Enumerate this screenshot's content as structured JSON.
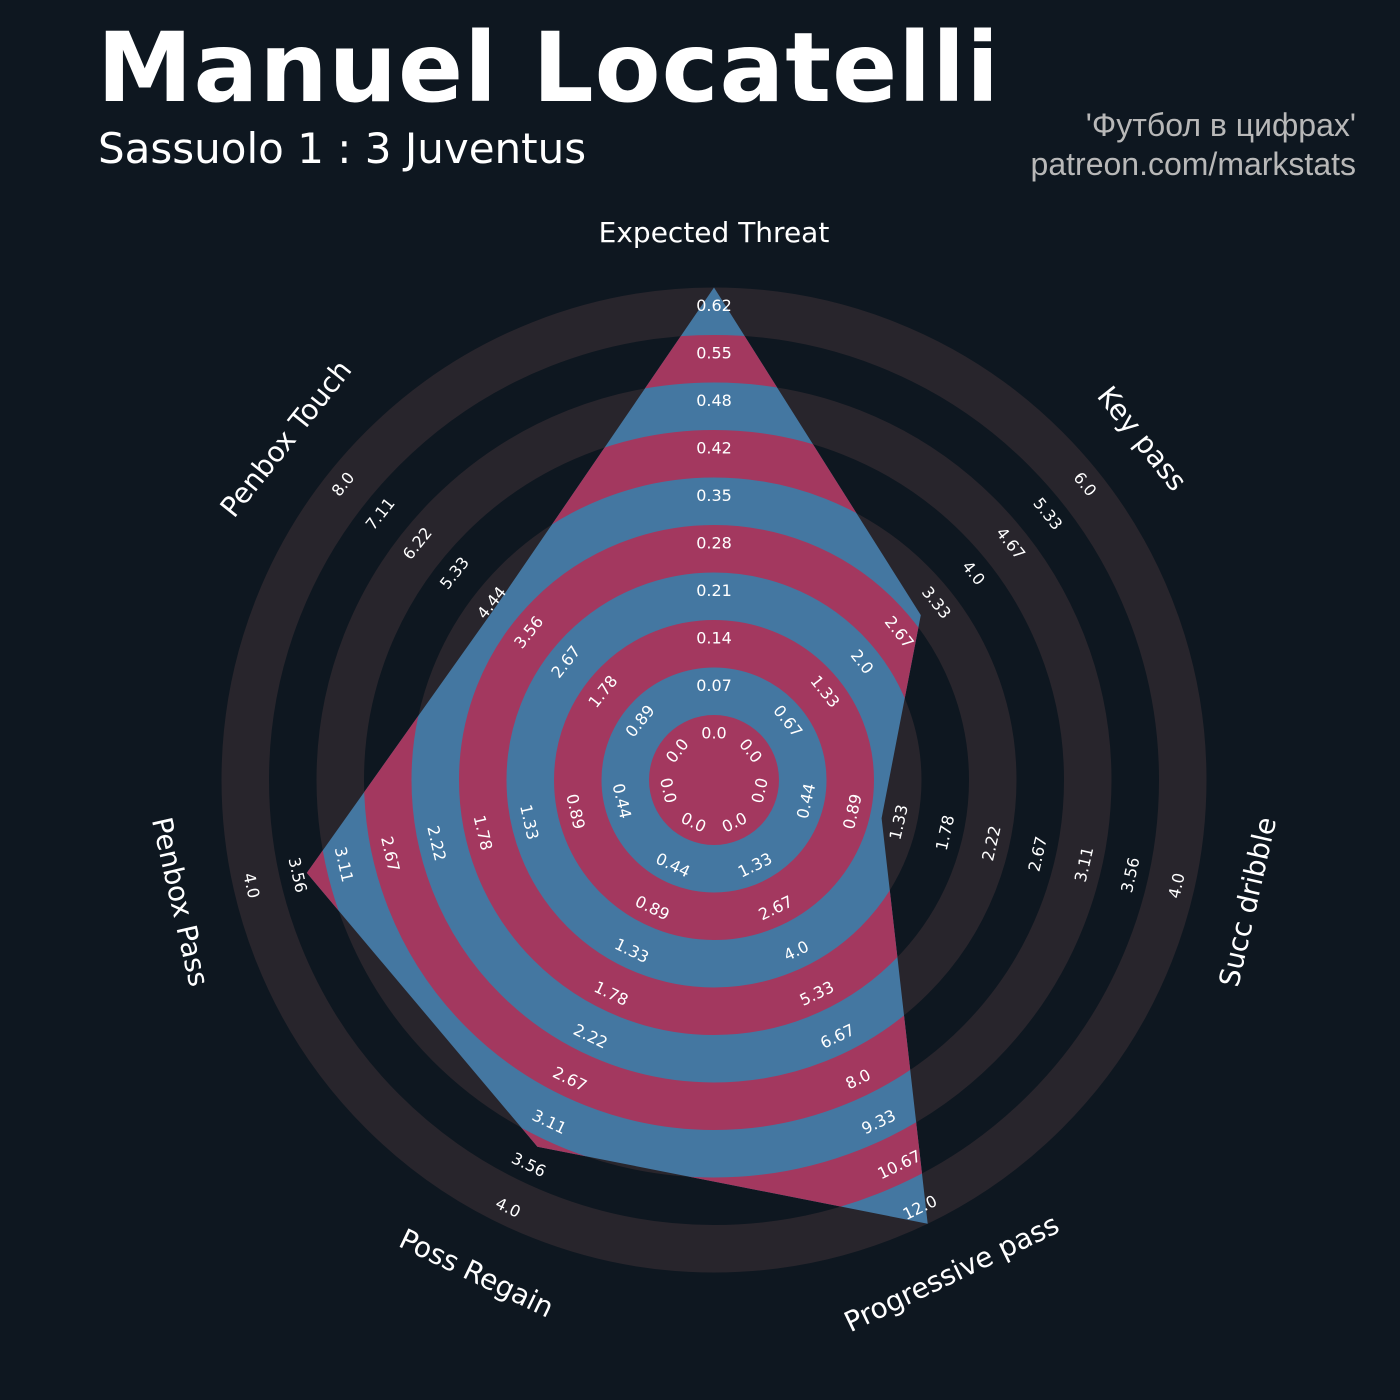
{
  "header": {
    "player_name": "Manuel Locatelli",
    "match": "Sassuolo 1 : 3 Juventus",
    "credit_line1": "'Футбол в цифрах'",
    "credit_line2": "patreon.com/markstats"
  },
  "colors": {
    "background": "#0e1720",
    "ring_band": "#28252c",
    "player_fill": "#4477a1",
    "player_alt": "#a3385f",
    "label_text": "#ffffff"
  },
  "chart_data": {
    "type": "radar",
    "title": "Manuel Locatelli",
    "subtitle": "Sassuolo 1 : 3 Juventus",
    "params": [
      "Expected Threat",
      "Key pass",
      "Succ dribble",
      "Progressive pass",
      "Poss Regain",
      "Penbox Pass",
      "Penbox Touch"
    ],
    "ranges": [
      [
        0.0,
        0.62
      ],
      [
        0.0,
        6.0
      ],
      [
        0.0,
        4.0
      ],
      [
        0.0,
        12.0
      ],
      [
        0.0,
        4.0
      ],
      [
        0.0,
        4.0
      ],
      [
        0.0,
        8.0
      ]
    ],
    "values": [
      0.62,
      2.8,
      1.0,
      12.0,
      3.2,
      3.3,
      4.0
    ],
    "tick_labels": [
      [
        "0.0",
        "0.07",
        "0.14",
        "0.21",
        "0.28",
        "0.35",
        "0.42",
        "0.48",
        "0.55",
        "0.62"
      ],
      [
        "0.0",
        "0.67",
        "1.33",
        "2.0",
        "2.67",
        "3.33",
        "4.0",
        "4.67",
        "5.33",
        "6.0"
      ],
      [
        "0.0",
        "0.44",
        "0.89",
        "1.33",
        "1.78",
        "2.22",
        "2.67",
        "3.11",
        "3.56",
        "4.0"
      ],
      [
        "0.0",
        "1.33",
        "2.67",
        "4.0",
        "5.33",
        "6.67",
        "8.0",
        "9.33",
        "10.67",
        "12.0"
      ],
      [
        "0.0",
        "0.44",
        "0.89",
        "1.33",
        "1.78",
        "2.22",
        "2.67",
        "3.11",
        "3.56",
        "4.0"
      ],
      [
        "0.0",
        "0.44",
        "0.89",
        "1.33",
        "1.78",
        "2.22",
        "2.67",
        "3.11",
        "3.56",
        "4.0"
      ],
      [
        "0.0",
        "0.89",
        "1.78",
        "2.67",
        "3.56",
        "4.44",
        "5.33",
        "6.22",
        "7.11",
        "8.0"
      ]
    ],
    "grid": true,
    "legend": "none"
  }
}
